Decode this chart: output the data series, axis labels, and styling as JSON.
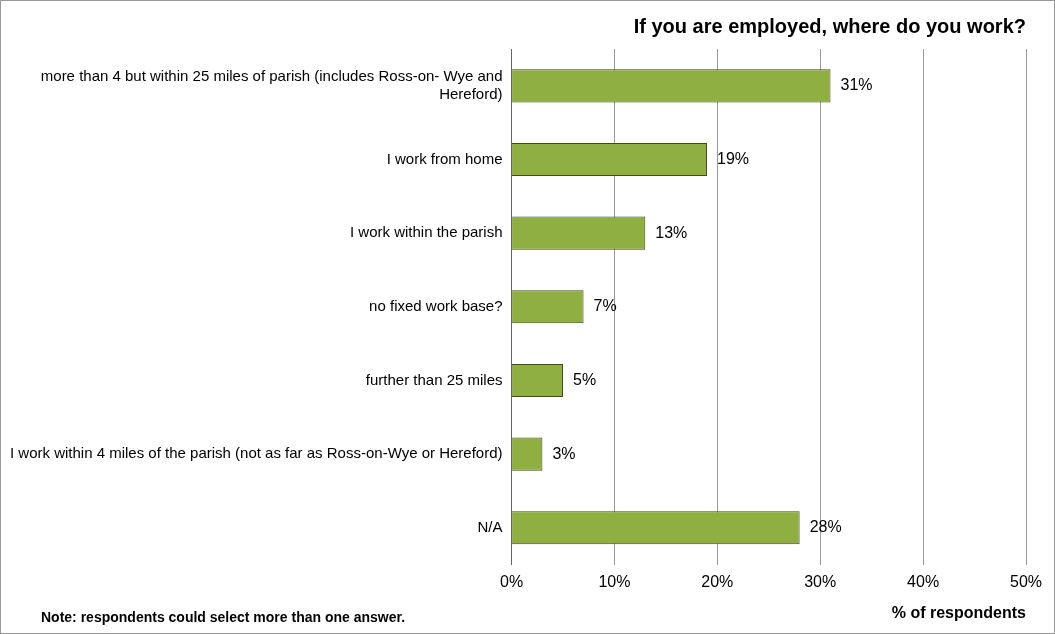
{
  "chart_data": {
    "type": "bar",
    "orientation": "horizontal",
    "title": "If you are employed, where do you work?",
    "xlabel": "% of respondents",
    "categories": [
      "more than 4 but within 25 miles of parish (includes Ross-on- Wye and Hereford)",
      "I work from home",
      "I work within the parish",
      "no fixed work base?",
      "further than 25 miles",
      "I work within 4 miles of the parish (not as far as Ross-on-Wye or Hereford)",
      "N/A"
    ],
    "values": [
      31,
      19,
      13,
      7,
      5,
      3,
      28
    ],
    "value_labels": [
      "31%",
      "19%",
      "13%",
      "7%",
      "5%",
      "3%",
      "28%"
    ],
    "color": "#8fb040",
    "xlim": [
      0,
      50
    ],
    "xticks": [
      {
        "value": 0,
        "label": "0%"
      },
      {
        "value": 10,
        "label": "10%"
      },
      {
        "value": 20,
        "label": "20%"
      },
      {
        "value": 30,
        "label": "30%"
      },
      {
        "value": 40,
        "label": "40%"
      },
      {
        "value": 50,
        "label": "50%"
      }
    ],
    "grid": "x",
    "legend": false,
    "annotations": [
      "Note: respondents could select more than one answer."
    ]
  }
}
